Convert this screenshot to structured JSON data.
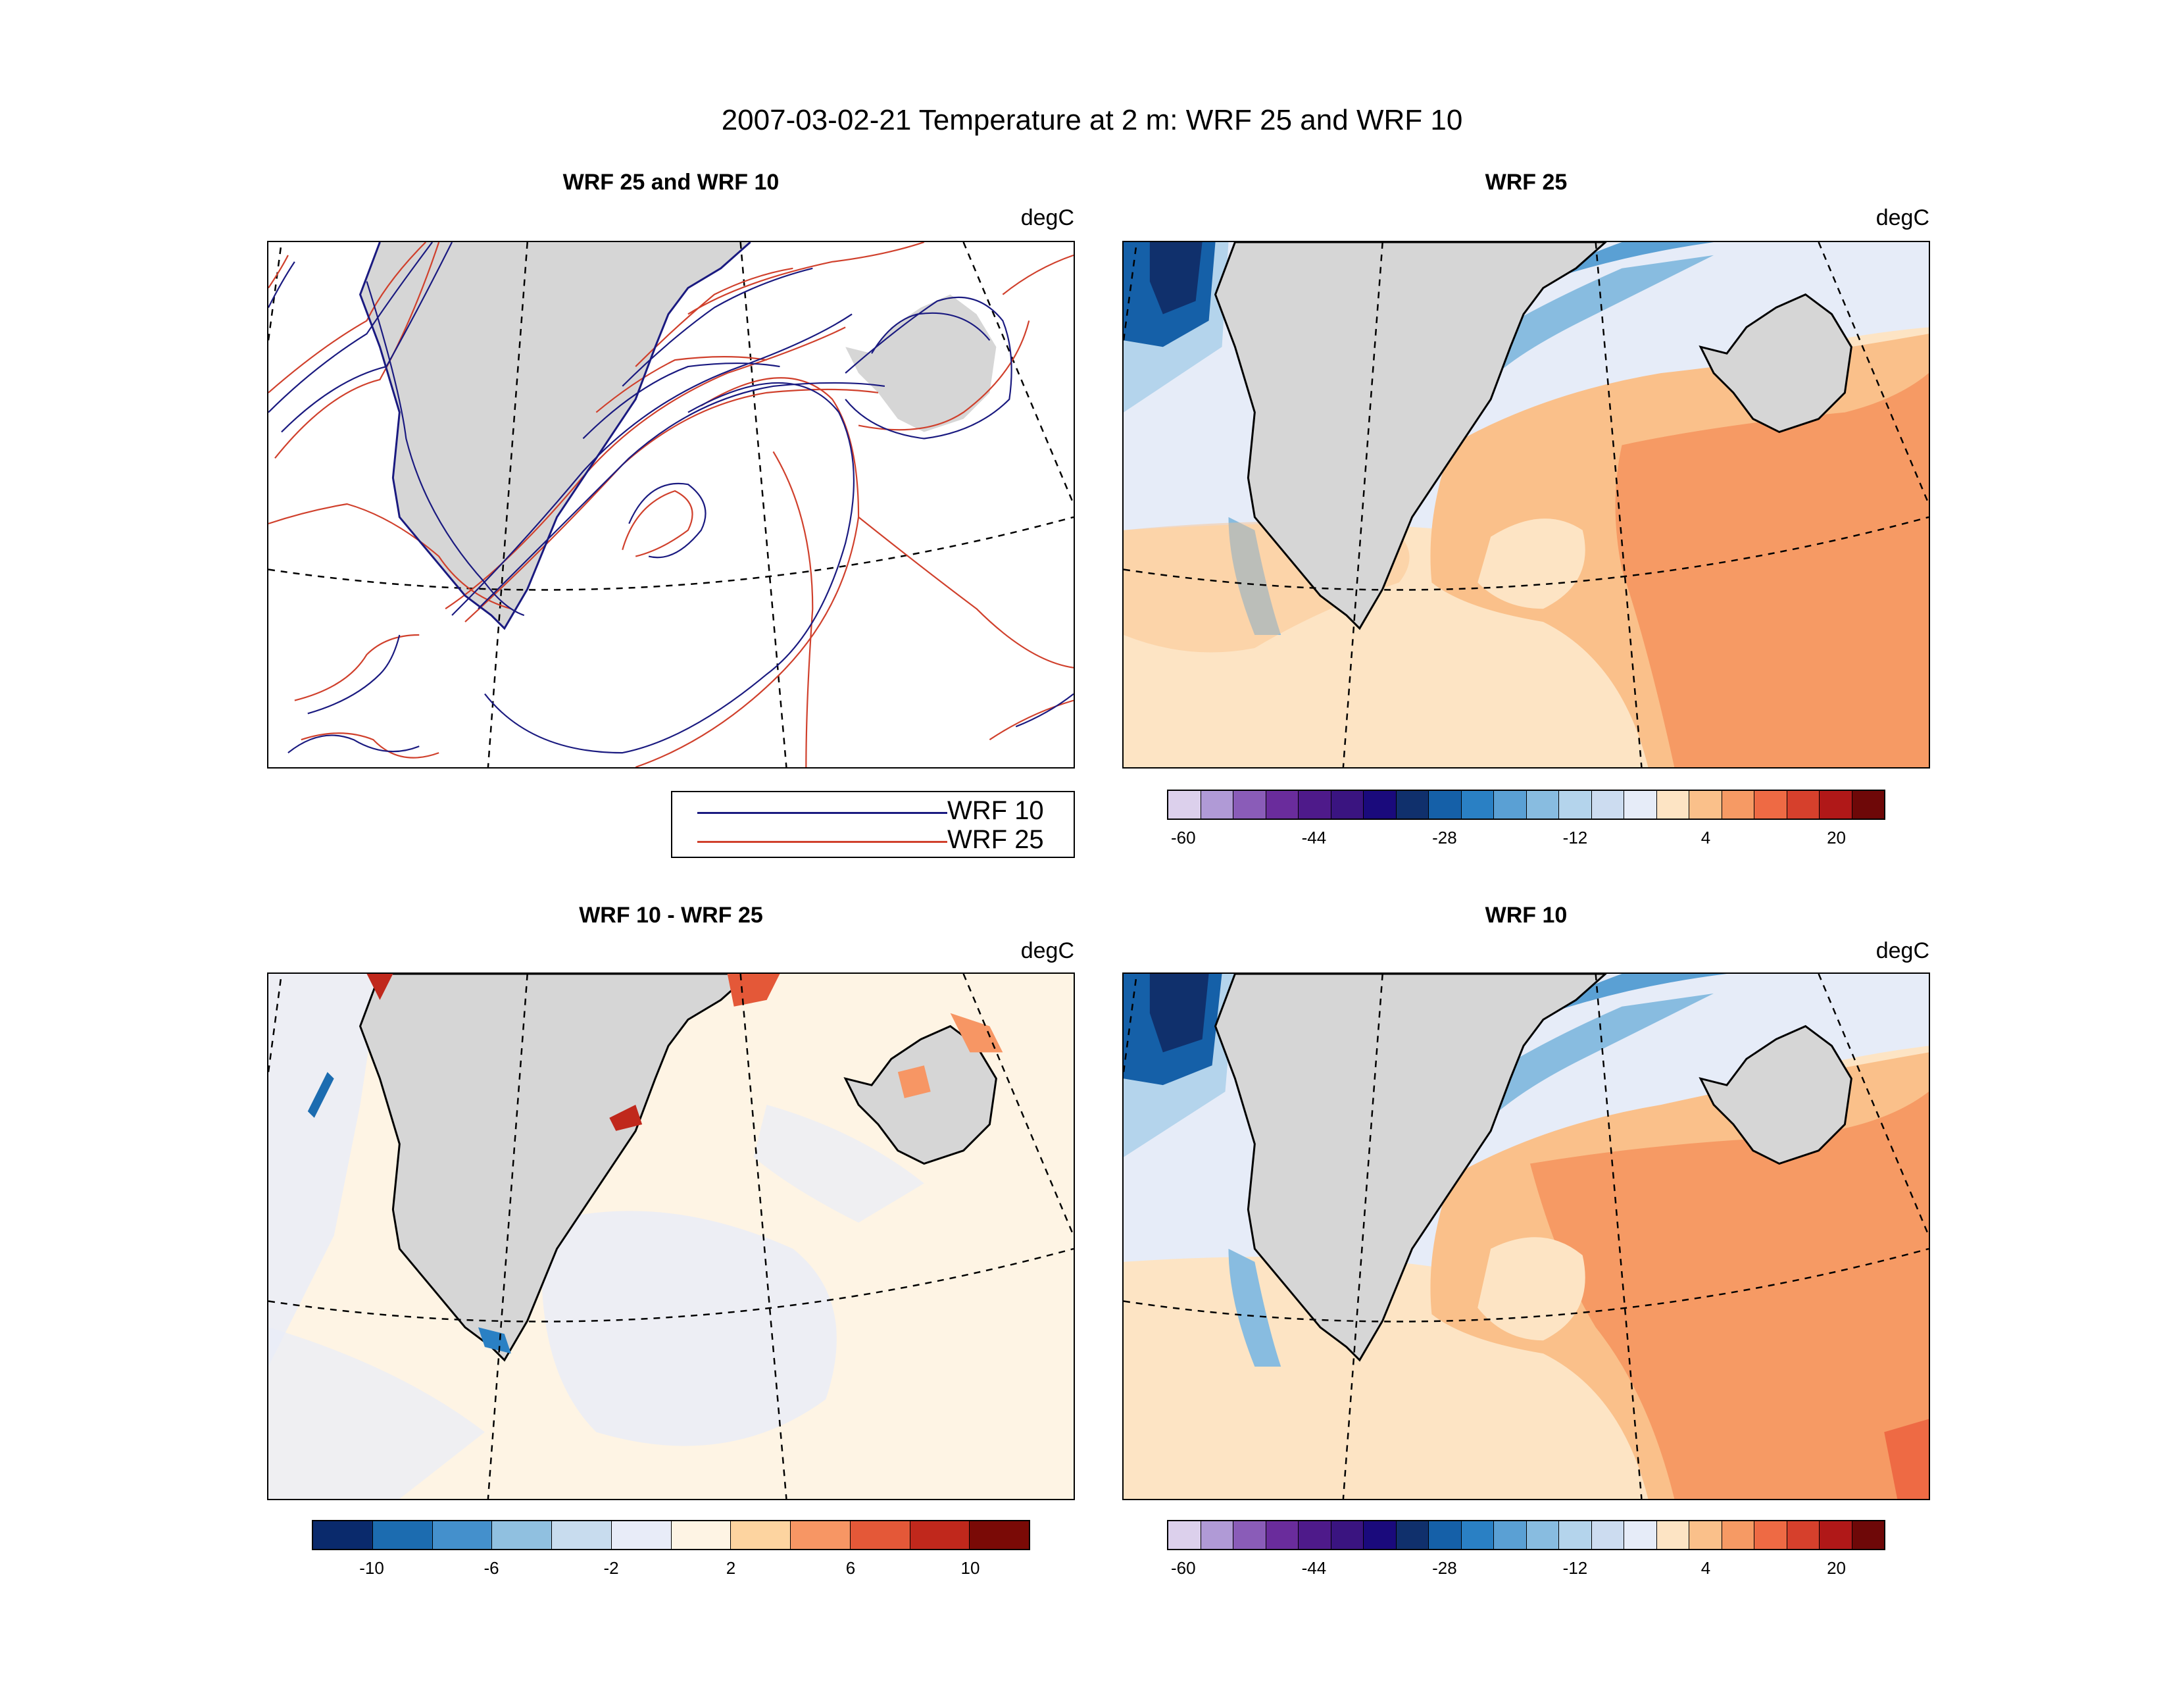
{
  "figure": {
    "title": "2007-03-02-21 Temperature at 2 m: WRF 25 and WRF 10"
  },
  "panels": {
    "contour": {
      "title": "WRF 25 and WRF 10",
      "units": "degC",
      "legend": [
        {
          "label": "WRF 10",
          "color": "#1a1a80"
        },
        {
          "label": "WRF 25",
          "color": "#d0402c"
        }
      ]
    },
    "wrf25": {
      "title": "WRF 25",
      "units": "degC"
    },
    "diff": {
      "title": "WRF 10 - WRF 25",
      "units": "degC"
    },
    "wrf10": {
      "title": "WRF 10",
      "units": "degC"
    }
  },
  "colorbars": {
    "temperature": {
      "colors": [
        "#dcd0ec",
        "#b09ad6",
        "#8a5cb8",
        "#6a2c9c",
        "#4e1a8a",
        "#3a1480",
        "#1a0a7c",
        "#10306c",
        "#1560a8",
        "#2a80c4",
        "#5aa0d4",
        "#88bce0",
        "#b4d4ec",
        "#ccdcf0",
        "#e6ecf8",
        "#fde4c4",
        "#fac08a",
        "#f69a64",
        "#ee6a44",
        "#d6402c",
        "#b01818",
        "#6e0808"
      ],
      "labels": [
        "-60",
        "-44",
        "-28",
        "-12",
        "4",
        "20"
      ]
    },
    "difference": {
      "colors": [
        "#0a2a6c",
        "#1c6cb0",
        "#4490cc",
        "#90c0e0",
        "#c8dcee",
        "#e8ecf8",
        "#fef4e4",
        "#fdd4a0",
        "#f79664",
        "#e45838",
        "#c0281c",
        "#7a0a06"
      ],
      "labels": [
        "-10",
        "-6",
        "-2",
        "2",
        "6",
        "10"
      ]
    }
  },
  "map": {
    "land_color": "#d6d6d6",
    "features": [
      "Greenland",
      "Iceland"
    ]
  }
}
